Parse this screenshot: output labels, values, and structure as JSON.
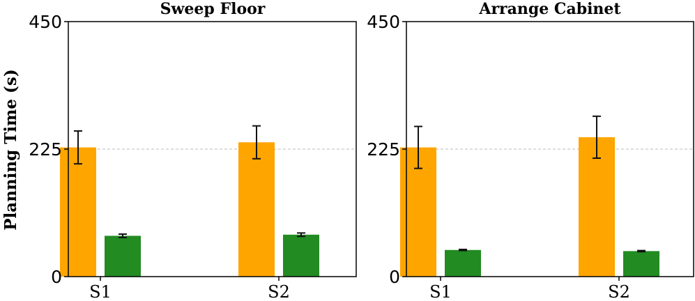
{
  "ylabel": "Planning Time (s)",
  "chart_data": [
    {
      "type": "bar",
      "title": "Sweep Floor",
      "categories": [
        "S1",
        "S2"
      ],
      "ylim": [
        0,
        450
      ],
      "yticks": [
        "0",
        "225",
        "450"
      ],
      "reference_line": 225,
      "series": [
        {
          "color": "#FFA500",
          "values": [
            228,
            237
          ],
          "error": [
            29,
            29
          ]
        },
        {
          "color": "#228B22",
          "values": [
            72,
            74
          ],
          "error": [
            3,
            3
          ]
        }
      ]
    },
    {
      "type": "bar",
      "title": "Arrange Cabinet",
      "categories": [
        "S1",
        "S2"
      ],
      "ylim": [
        0,
        450
      ],
      "yticks": [
        "0",
        "225",
        "450"
      ],
      "reference_line": 225,
      "series": [
        {
          "color": "#FFA500",
          "values": [
            228,
            246
          ],
          "error": [
            37,
            37
          ]
        },
        {
          "color": "#228B22",
          "values": [
            47,
            45
          ],
          "error": [
            1,
            1
          ]
        }
      ]
    }
  ]
}
